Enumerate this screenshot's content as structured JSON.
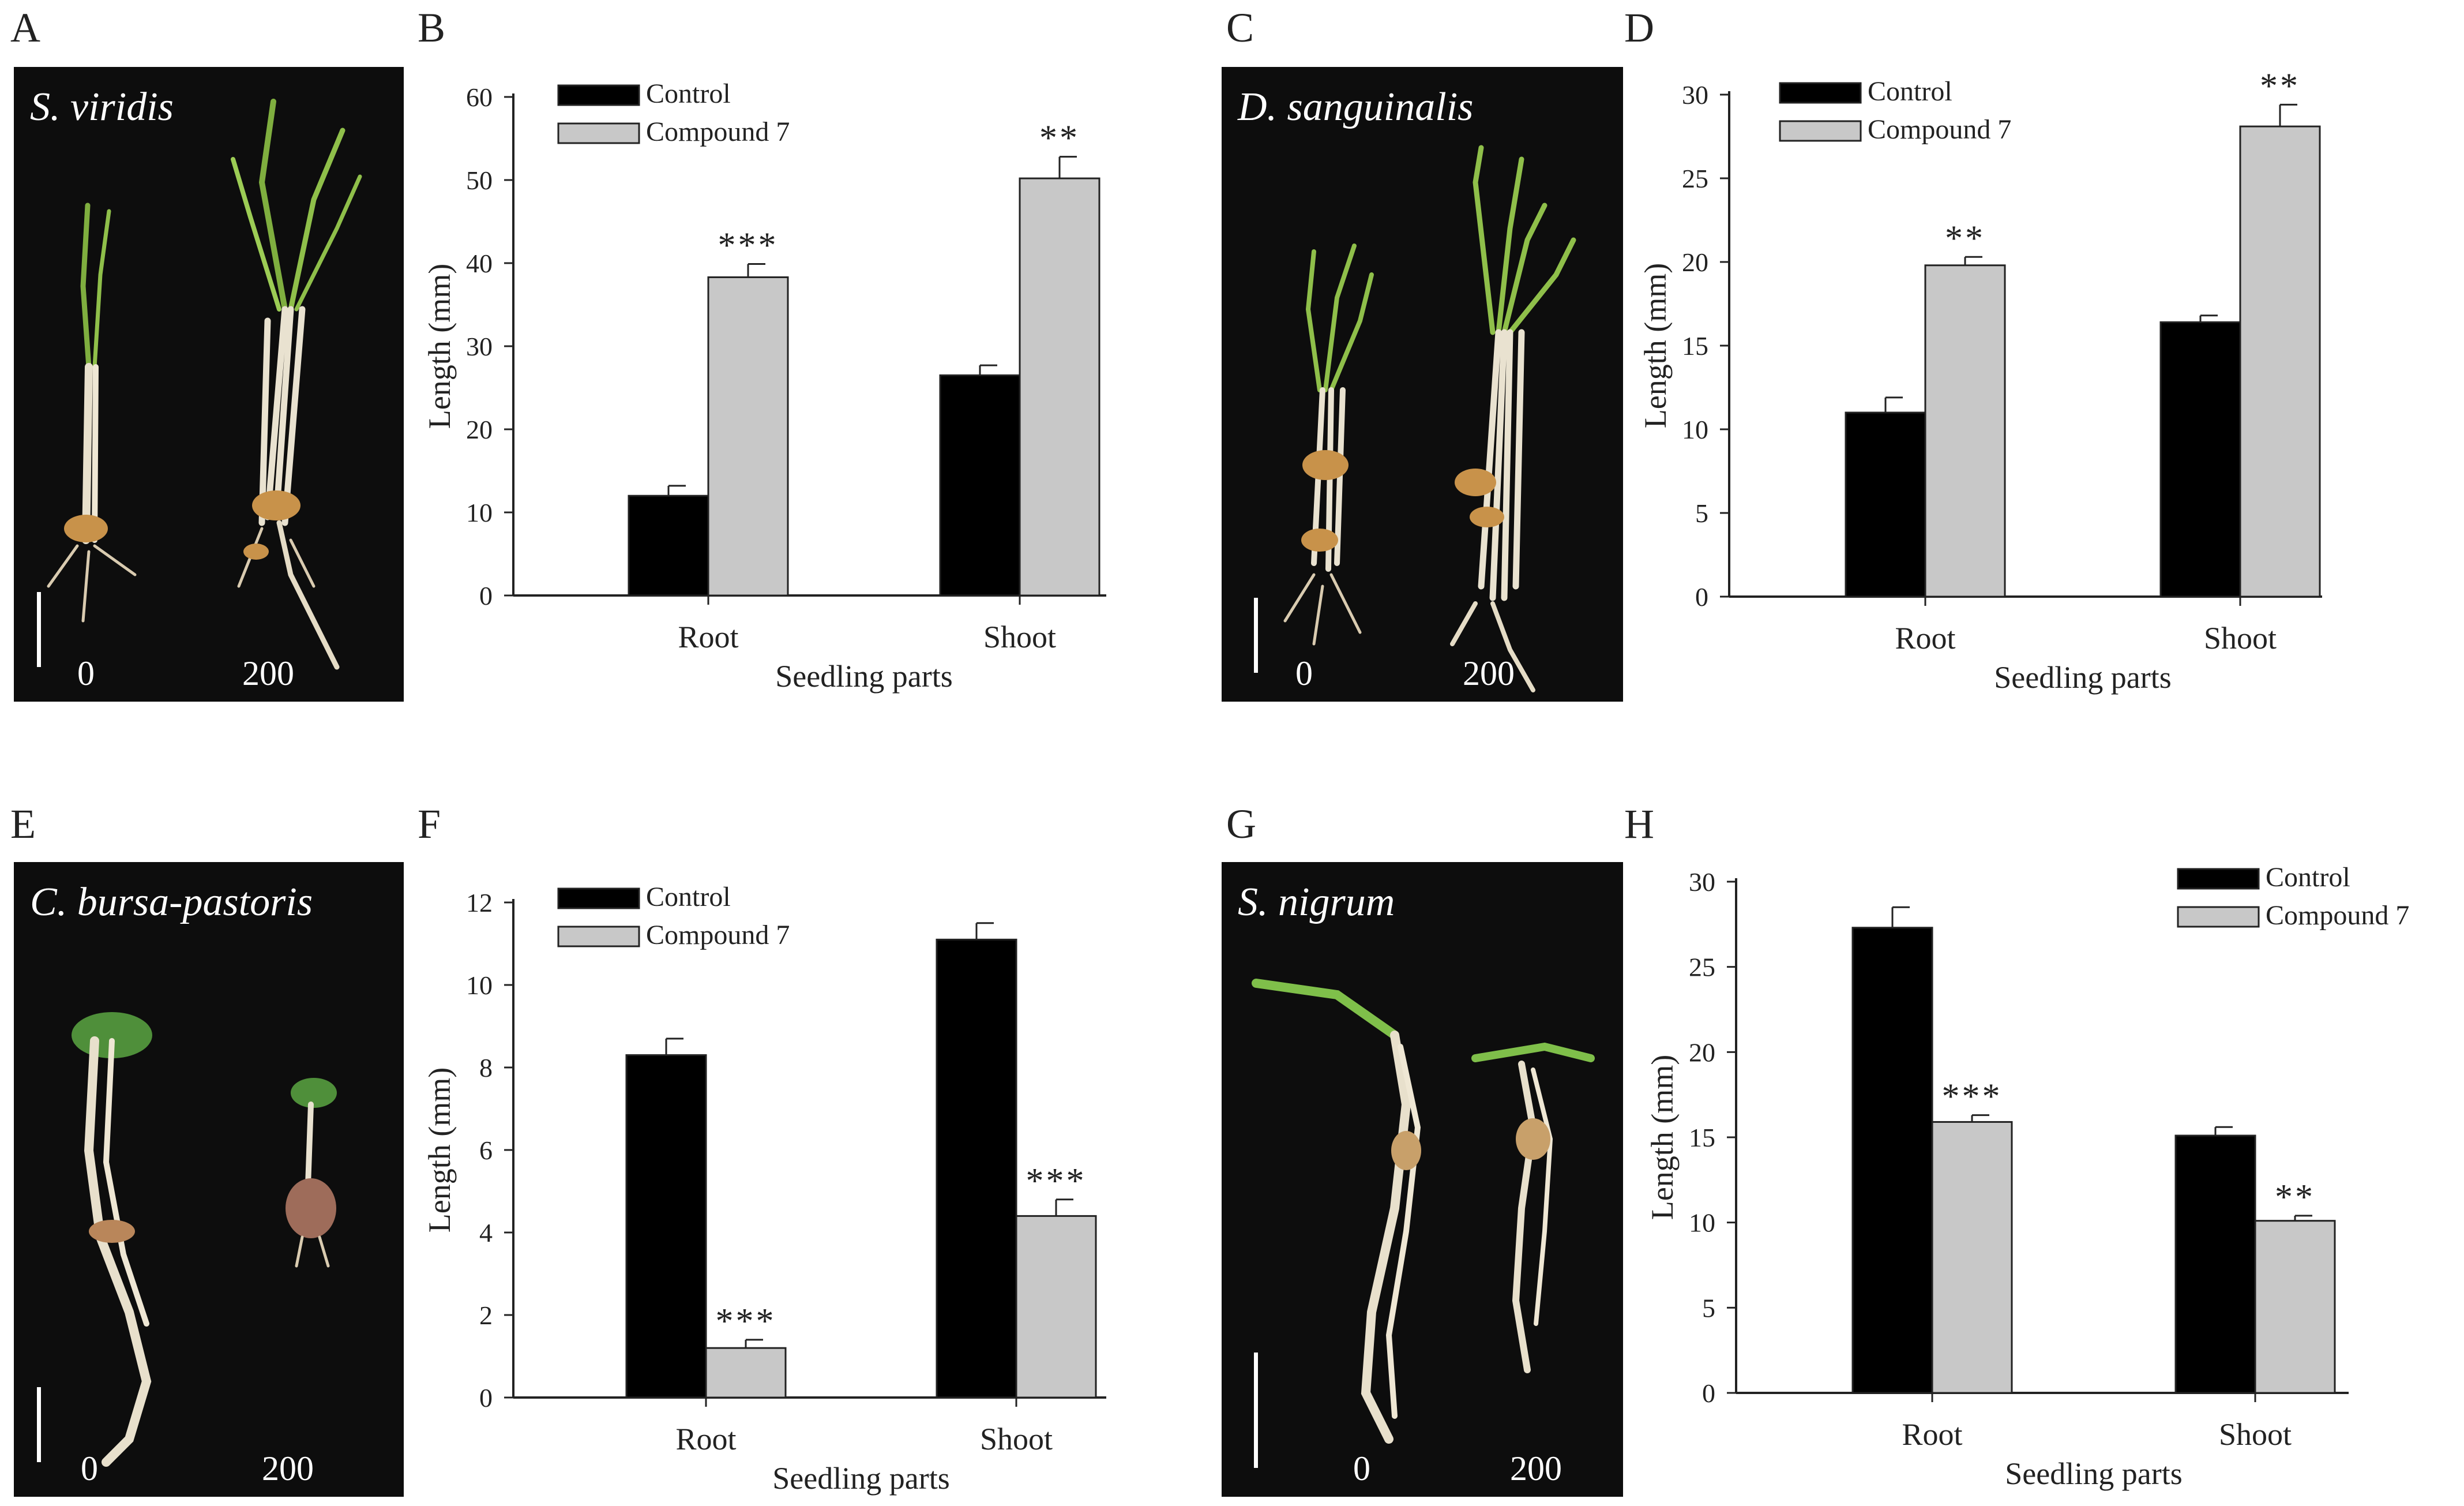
{
  "colors": {
    "control": "#000000",
    "compound": "#c8c8c8",
    "photo_background": "#0d0d0d"
  },
  "photos": [
    {
      "letter": "A",
      "species": "S. viridis",
      "dose_left": "0",
      "dose_right": "200"
    },
    {
      "letter": "C",
      "species": "D. sanguinalis",
      "dose_left": "0",
      "dose_right": "200"
    },
    {
      "letter": "E",
      "species": "C. bursa-pastoris",
      "dose_left": "0",
      "dose_right": "200"
    },
    {
      "letter": "G",
      "species": "S. nigrum",
      "dose_left": "0",
      "dose_right": "200"
    }
  ],
  "chart_data": [
    {
      "panel": "B",
      "type": "bar",
      "title": "",
      "xlabel": "Seedling parts",
      "ylabel": "Length (mm)",
      "categories": [
        "Root",
        "Shoot"
      ],
      "ylim": [
        0,
        60
      ],
      "yticks": [
        "0",
        "10",
        "20",
        "30",
        "40",
        "50",
        "60"
      ],
      "legend_position": "top-left",
      "series": [
        {
          "name": "Control",
          "values": [
            12,
            26.5
          ],
          "errors": [
            1.2,
            1.2
          ],
          "significance": [
            "",
            ""
          ]
        },
        {
          "name": "Compound 7",
          "values": [
            38.3,
            50.2
          ],
          "errors": [
            1.6,
            2.6
          ],
          "significance": [
            "***",
            "**"
          ]
        }
      ]
    },
    {
      "panel": "D",
      "type": "bar",
      "title": "",
      "xlabel": "Seedling parts",
      "ylabel": "Length (mm)",
      "categories": [
        "Root",
        "Shoot"
      ],
      "ylim": [
        0,
        30
      ],
      "yticks": [
        "0",
        "5",
        "10",
        "15",
        "20",
        "25",
        "30"
      ],
      "legend_position": "top-left",
      "series": [
        {
          "name": "Control",
          "values": [
            11,
            16.4
          ],
          "errors": [
            0.9,
            0.4
          ],
          "significance": [
            "",
            ""
          ]
        },
        {
          "name": "Compound 7",
          "values": [
            19.8,
            28.1
          ],
          "errors": [
            0.5,
            1.3
          ],
          "significance": [
            "**",
            "**"
          ]
        }
      ]
    },
    {
      "panel": "F",
      "type": "bar",
      "title": "",
      "xlabel": "Seedling parts",
      "ylabel": "Length (mm)",
      "categories": [
        "Root",
        "Shoot"
      ],
      "ylim": [
        0,
        12
      ],
      "yticks": [
        "0",
        "2",
        "4",
        "6",
        "8",
        "10",
        "12"
      ],
      "legend_position": "top-left",
      "series": [
        {
          "name": "Control",
          "values": [
            8.3,
            11.1
          ],
          "errors": [
            0.4,
            0.4
          ],
          "significance": [
            "",
            ""
          ]
        },
        {
          "name": "Compound 7",
          "values": [
            1.2,
            4.4
          ],
          "errors": [
            0.2,
            0.4
          ],
          "significance": [
            "***",
            "***"
          ]
        }
      ]
    },
    {
      "panel": "H",
      "type": "bar",
      "title": "",
      "xlabel": "Seedling parts",
      "ylabel": "Length (mm)",
      "categories": [
        "Root",
        "Shoot"
      ],
      "ylim": [
        0,
        30
      ],
      "yticks": [
        "0",
        "5",
        "10",
        "15",
        "20",
        "25",
        "30"
      ],
      "legend_position": "top-right",
      "series": [
        {
          "name": "Control",
          "values": [
            27.3,
            15.1
          ],
          "errors": [
            1.2,
            0.5
          ],
          "significance": [
            "",
            ""
          ]
        },
        {
          "name": "Compound 7",
          "values": [
            15.9,
            10.1
          ],
          "errors": [
            0.4,
            0.3
          ],
          "significance": [
            "***",
            "**"
          ]
        }
      ]
    }
  ]
}
